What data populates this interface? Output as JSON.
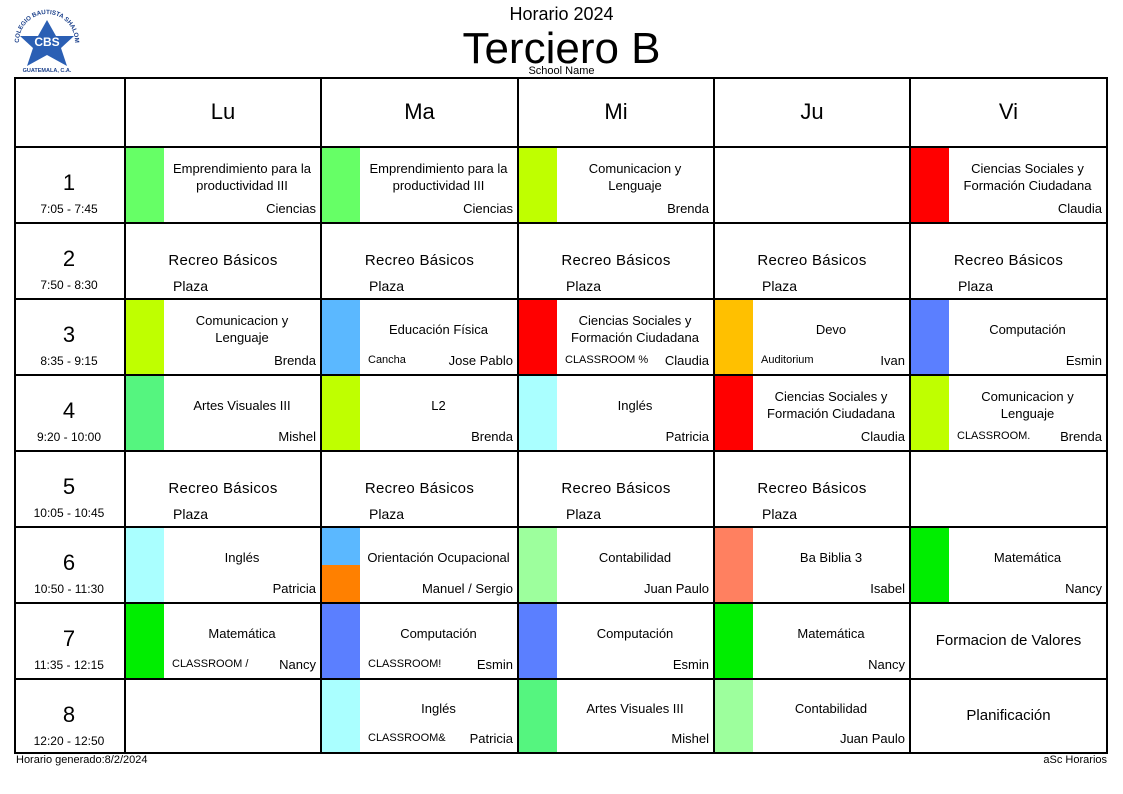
{
  "header": {
    "subtitle": "Horario 2024",
    "title": "Terciero B",
    "school": "School Name",
    "logo": {
      "arc_text": "COLEGIO BAUTISTA SHALOM",
      "center_text": "CBS",
      "bottom_text": "GUATEMALA, C.A.",
      "colors": {
        "star": "#2b5fb4",
        "text": "#1a3f8a"
      }
    }
  },
  "days": [
    "Lu",
    "Ma",
    "Mi",
    "Ju",
    "Vi"
  ],
  "periods": [
    {
      "num": "1",
      "time": "7:05 - 7:45"
    },
    {
      "num": "2",
      "time": "7:50 - 8:30"
    },
    {
      "num": "3",
      "time": "8:35 - 9:15"
    },
    {
      "num": "4",
      "time": "9:20 - 10:00"
    },
    {
      "num": "5",
      "time": "10:05 - 10:45"
    },
    {
      "num": "6",
      "time": "10:50 - 11:30"
    },
    {
      "num": "7",
      "time": "11:35 - 12:15"
    },
    {
      "num": "8",
      "time": "12:20 - 12:50"
    }
  ],
  "schedule": [
    [
      {
        "type": "class",
        "subject": "Emprendimiento para la productividad III",
        "teacher": "Ciencias",
        "color": "#66ff66"
      },
      {
        "type": "class",
        "subject": "Emprendimiento para la productividad III",
        "teacher": "Ciencias",
        "color": "#66ff66"
      },
      {
        "type": "class",
        "subject": "Comunicacion y Lenguaje",
        "teacher": "Brenda",
        "color": "#bfff00"
      },
      {
        "type": "empty"
      },
      {
        "type": "class",
        "subject": "Ciencias Sociales y Formación Ciudadana",
        "teacher": "Claudia",
        "color": "#ff0000"
      }
    ],
    [
      {
        "type": "recess",
        "subject": "Recreo Básicos",
        "place": "Plaza"
      },
      {
        "type": "recess",
        "subject": "Recreo Básicos",
        "place": "Plaza"
      },
      {
        "type": "recess",
        "subject": "Recreo Básicos",
        "place": "Plaza"
      },
      {
        "type": "recess",
        "subject": "Recreo Básicos",
        "place": "Plaza"
      },
      {
        "type": "recess",
        "subject": "Recreo Básicos",
        "place": "Plaza"
      }
    ],
    [
      {
        "type": "class",
        "subject": "Comunicacion y Lenguaje",
        "teacher": "Brenda",
        "color": "#bfff00"
      },
      {
        "type": "class",
        "subject": "Educación Física",
        "teacher": "Jose Pablo",
        "room": "Cancha",
        "color": "#5bb8ff"
      },
      {
        "type": "class",
        "subject": "Ciencias Sociales y Formación Ciudadana",
        "teacher": "Claudia",
        "room": "CLASSROOM %",
        "color": "#ff0000"
      },
      {
        "type": "class",
        "subject": "Devo",
        "teacher": "Ivan",
        "room": "Auditorium",
        "color": "#ffc000"
      },
      {
        "type": "class",
        "subject": "Computación",
        "teacher": "Esmin",
        "color": "#5b7fff"
      }
    ],
    [
      {
        "type": "class",
        "subject": "Artes Visuales III",
        "teacher": "Mishel",
        "color": "#55f57f"
      },
      {
        "type": "class",
        "subject": "L2",
        "teacher": "Brenda",
        "color": "#bfff00"
      },
      {
        "type": "class",
        "subject": "Inglés",
        "teacher": "Patricia",
        "color": "#aaffff"
      },
      {
        "type": "class",
        "subject": "Ciencias Sociales y Formación Ciudadana",
        "teacher": "Claudia",
        "color": "#ff0000"
      },
      {
        "type": "class",
        "subject": "Comunicacion y Lenguaje",
        "teacher": "Brenda",
        "room": "CLASSROOM.",
        "color": "#bfff00"
      }
    ],
    [
      {
        "type": "recess",
        "subject": "Recreo Básicos",
        "place": "Plaza"
      },
      {
        "type": "recess",
        "subject": "Recreo Básicos",
        "place": "Plaza"
      },
      {
        "type": "recess",
        "subject": "Recreo Básicos",
        "place": "Plaza"
      },
      {
        "type": "recess",
        "subject": "Recreo Básicos",
        "place": "Plaza"
      },
      {
        "type": "empty"
      }
    ],
    [
      {
        "type": "class",
        "subject": "Inglés",
        "teacher": "Patricia",
        "color": "#aaffff"
      },
      {
        "type": "class",
        "subject": "Orientación Ocupacional",
        "teacher": "Manuel / Sergio",
        "color": "#5bb8ff",
        "color2": "#ff8000"
      },
      {
        "type": "class",
        "subject": "Contabilidad",
        "teacher": "Juan Paulo",
        "color": "#9dff9d"
      },
      {
        "type": "class",
        "subject": "Ba Biblia 3",
        "teacher": "Isabel",
        "color": "#ff8060"
      },
      {
        "type": "class",
        "subject": "Matemática",
        "teacher": "Nancy",
        "color": "#00ee00"
      }
    ],
    [
      {
        "type": "class",
        "subject": "Matemática",
        "teacher": "Nancy",
        "room": "CLASSROOM /",
        "color": "#00ee00"
      },
      {
        "type": "class",
        "subject": "Computación",
        "teacher": "Esmin",
        "room": "CLASSROOM!",
        "color": "#5b7fff"
      },
      {
        "type": "class",
        "subject": "Computación",
        "teacher": "Esmin",
        "color": "#5b7fff"
      },
      {
        "type": "class",
        "subject": "Matemática",
        "teacher": "Nancy",
        "color": "#00ee00"
      },
      {
        "type": "centered",
        "subject": "Formacion de Valores"
      }
    ],
    [
      {
        "type": "empty"
      },
      {
        "type": "class",
        "subject": "Inglés",
        "teacher": "Patricia",
        "room": "CLASSROOM&",
        "color": "#aaffff"
      },
      {
        "type": "class",
        "subject": "Artes Visuales III",
        "teacher": "Mishel",
        "color": "#55f57f"
      },
      {
        "type": "class",
        "subject": "Contabilidad",
        "teacher": "Juan Paulo",
        "color": "#9dff9d"
      },
      {
        "type": "centered",
        "subject": "Planificación"
      }
    ]
  ],
  "footer": {
    "generated": "Horario generado:8/2/2024",
    "brand": "aSc Horarios"
  }
}
